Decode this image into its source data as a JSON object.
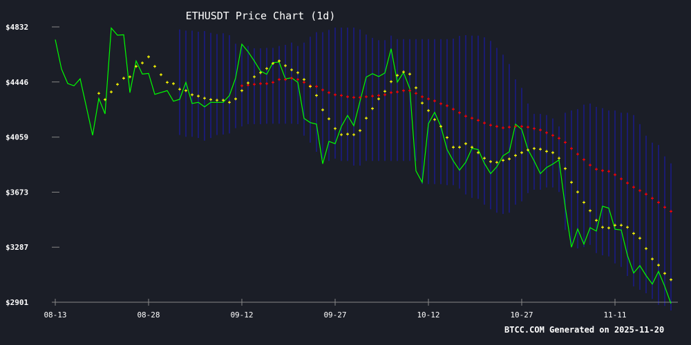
{
  "chart_data": {
    "type": "line",
    "title": "ETHUSDT Price Chart (1d)",
    "footer": "BTCC.COM Generated on 2025-11-20",
    "xlabel": "",
    "ylabel": "",
    "ylim": [
      2901,
      4832
    ],
    "y_ticks": [
      "$4832",
      "$4446",
      "$4059",
      "$3673",
      "$3287",
      "$2901"
    ],
    "y_tick_values": [
      4832,
      4446,
      4059,
      3673,
      3287,
      2901
    ],
    "x_ticks": [
      "08-13",
      "08-28",
      "09-12",
      "09-27",
      "10-12",
      "10-27",
      "11-11"
    ],
    "grid": false,
    "colors": {
      "background": "#1b1e27",
      "price": "#00ff00",
      "short_ma": "#ffff00",
      "long_ma": "#ff0000",
      "band": "#1a1a8c",
      "axis": "#888888",
      "text": "#ffffff"
    },
    "dates": [
      "08-13",
      "08-14",
      "08-15",
      "08-16",
      "08-17",
      "08-18",
      "08-19",
      "08-20",
      "08-21",
      "08-22",
      "08-23",
      "08-24",
      "08-25",
      "08-26",
      "08-27",
      "08-28",
      "08-29",
      "08-30",
      "08-31",
      "09-01",
      "09-02",
      "09-03",
      "09-04",
      "09-05",
      "09-06",
      "09-07",
      "09-08",
      "09-09",
      "09-10",
      "09-11",
      "09-12",
      "09-13",
      "09-14",
      "09-15",
      "09-16",
      "09-17",
      "09-18",
      "09-19",
      "09-20",
      "09-21",
      "09-22",
      "09-23",
      "09-24",
      "09-25",
      "09-26",
      "09-27",
      "09-28",
      "09-29",
      "09-30",
      "10-01",
      "10-02",
      "10-03",
      "10-04",
      "10-05",
      "10-06",
      "10-07",
      "10-08",
      "10-09",
      "10-10",
      "10-11",
      "10-12",
      "10-13",
      "10-14",
      "10-15",
      "10-16",
      "10-17",
      "10-18",
      "10-19",
      "10-20",
      "10-21",
      "10-22",
      "10-23",
      "10-24",
      "10-25",
      "10-26",
      "10-27",
      "10-28",
      "10-29",
      "10-30",
      "10-31",
      "11-01",
      "11-02",
      "11-03",
      "11-04",
      "11-05",
      "11-06",
      "11-07",
      "11-08",
      "11-09",
      "11-10",
      "11-11",
      "11-12",
      "11-13",
      "11-14",
      "11-15",
      "11-16",
      "11-17",
      "11-18",
      "11-19",
      "11-20"
    ],
    "price": [
      4743,
      4537,
      4435,
      4419,
      4468,
      4271,
      4072,
      4330,
      4222,
      4824,
      4774,
      4777,
      4371,
      4593,
      4501,
      4506,
      4359,
      4372,
      4385,
      4311,
      4324,
      4443,
      4295,
      4303,
      4271,
      4303,
      4303,
      4303,
      4351,
      4474,
      4711,
      4658,
      4593,
      4522,
      4500,
      4582,
      4585,
      4468,
      4475,
      4443,
      4190,
      4161,
      4150,
      3872,
      4029,
      4013,
      4134,
      4211,
      4139,
      4311,
      4480,
      4504,
      4484,
      4509,
      4679,
      4445,
      4513,
      4400,
      3822,
      3742,
      4153,
      4233,
      4134,
      3972,
      3892,
      3827,
      3883,
      3980,
      3972,
      3875,
      3803,
      3851,
      3928,
      3956,
      4150,
      4114,
      3972,
      3892,
      3803,
      3846,
      3870,
      3899,
      3569,
      3287,
      3415,
      3308,
      3424,
      3400,
      3574,
      3561,
      3413,
      3408,
      3230,
      3106,
      3158,
      3088,
      3028,
      3117,
      3012,
      2891
    ],
    "short_ma_start_index": 7,
    "short_ma": [
      4366,
      4322,
      4376,
      4429,
      4472,
      4482,
      4555,
      4579,
      4622,
      4555,
      4497,
      4443,
      4434,
      4395,
      4385,
      4356,
      4347,
      4332,
      4322,
      4318,
      4318,
      4303,
      4327,
      4385,
      4439,
      4482,
      4511,
      4540,
      4576,
      4593,
      4560,
      4531,
      4511,
      4463,
      4414,
      4351,
      4250,
      4187,
      4119,
      4076,
      4080,
      4076,
      4105,
      4192,
      4259,
      4327,
      4380,
      4448,
      4492,
      4516,
      4501,
      4405,
      4298,
      4245,
      4182,
      4134,
      4056,
      3988,
      3988,
      4013,
      3988,
      3950,
      3911,
      3887,
      3882,
      3896,
      3906,
      3930,
      3950,
      3969,
      3979,
      3974,
      3959,
      3950,
      3911,
      3838,
      3742,
      3674,
      3601,
      3543,
      3475,
      3427,
      3422,
      3441,
      3441,
      3427,
      3383,
      3350,
      3277,
      3204,
      3161,
      3103,
      3059
    ],
    "long_ma_start_index": 30,
    "long_ma": [
      4419,
      4424,
      4429,
      4434,
      4434,
      4443,
      4463,
      4463,
      4472,
      4463,
      4443,
      4419,
      4414,
      4390,
      4371,
      4356,
      4351,
      4342,
      4337,
      4337,
      4342,
      4347,
      4351,
      4356,
      4371,
      4376,
      4385,
      4385,
      4366,
      4342,
      4327,
      4313,
      4293,
      4279,
      4255,
      4230,
      4206,
      4192,
      4177,
      4158,
      4143,
      4134,
      4124,
      4129,
      4134,
      4134,
      4129,
      4119,
      4109,
      4090,
      4071,
      4051,
      4022,
      3979,
      3940,
      3901,
      3863,
      3834,
      3824,
      3819,
      3795,
      3766,
      3737,
      3708,
      3684,
      3659,
      3630,
      3601,
      3567,
      3538
    ],
    "band_start_index": 20,
    "band_upper": [
      4814,
      4806,
      4806,
      4798,
      4803,
      4790,
      4782,
      4787,
      4774,
      4714,
      4710,
      4698,
      4682,
      4682,
      4685,
      4685,
      4698,
      4706,
      4722,
      4698,
      4722,
      4763,
      4795,
      4795,
      4811,
      4827,
      4827,
      4827,
      4827,
      4814,
      4779,
      4755,
      4739,
      4739,
      4771,
      4746,
      4746,
      4746,
      4746,
      4746,
      4746,
      4746,
      4746,
      4746,
      4750,
      4769,
      4774,
      4771,
      4771,
      4759,
      4734,
      4685,
      4637,
      4572,
      4464,
      4404,
      4295,
      4222,
      4222,
      4214,
      4190,
      4134,
      4230,
      4246,
      4255,
      4287,
      4295,
      4271,
      4262,
      4246,
      4246,
      4230,
      4230,
      4214,
      4150,
      4069,
      4020,
      4004,
      3924,
      3875
    ],
    "band_lower": [
      4074,
      4061,
      4061,
      4053,
      4034,
      4053,
      4074,
      4077,
      4085,
      4122,
      4134,
      4150,
      4150,
      4150,
      4153,
      4153,
      4153,
      4153,
      4153,
      4150,
      4069,
      4020,
      3956,
      3908,
      3892,
      3908,
      3892,
      3892,
      3859,
      3859,
      3892,
      3892,
      3892,
      3892,
      3892,
      3892,
      3892,
      3892,
      3892,
      3730,
      3730,
      3730,
      3730,
      3722,
      3722,
      3698,
      3657,
      3633,
      3625,
      3585,
      3553,
      3529,
      3520,
      3529,
      3585,
      3609,
      3666,
      3690,
      3690,
      3706,
      3706,
      3674,
      3408,
      3311,
      3278,
      3287,
      3303,
      3246,
      3230,
      3222,
      3173,
      3149,
      3085,
      3012,
      2988,
      2964,
      2924,
      2883,
      2875,
      2843
    ]
  }
}
